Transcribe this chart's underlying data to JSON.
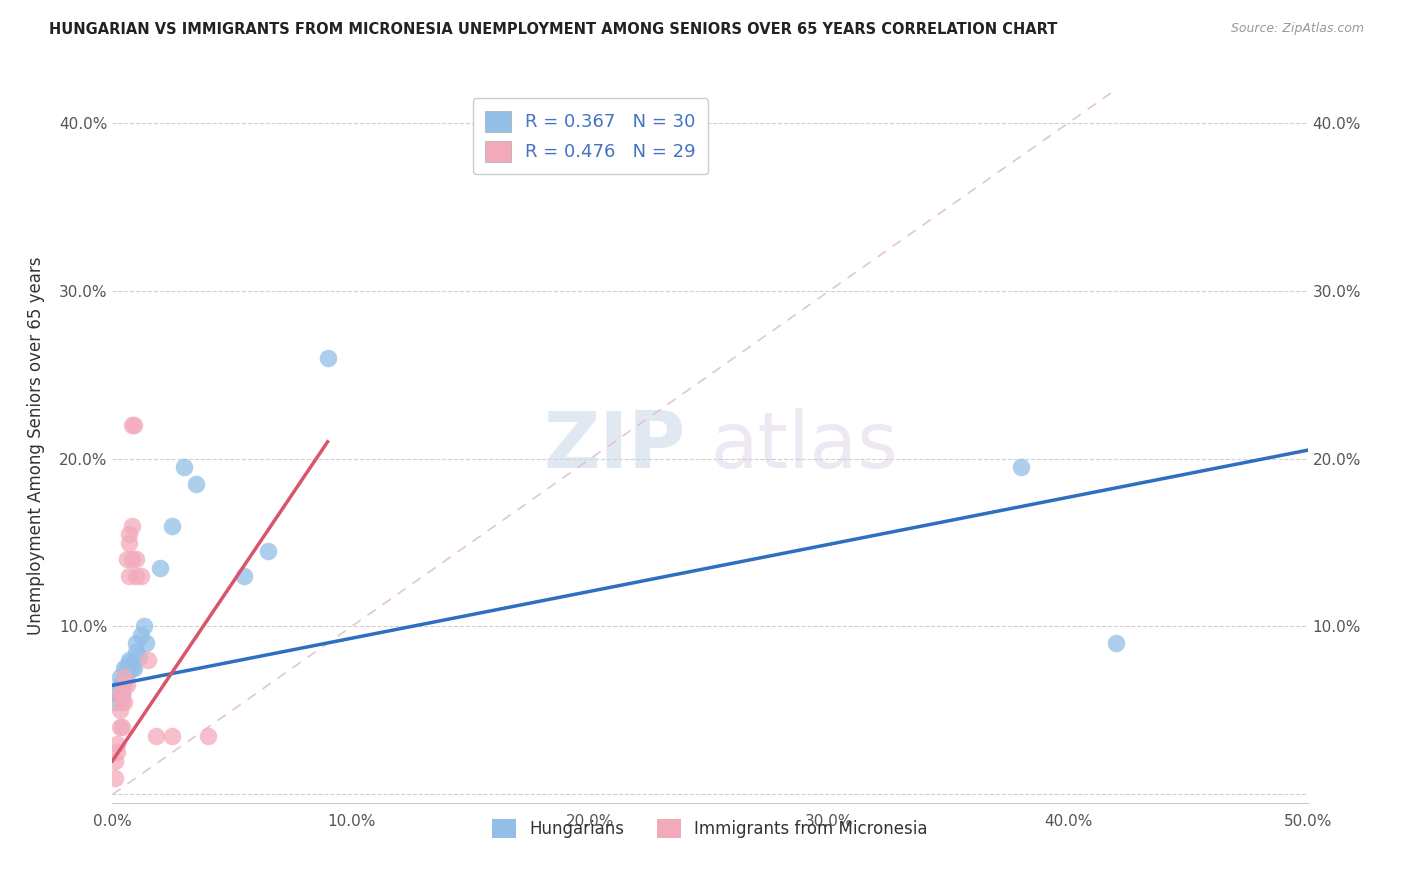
{
  "title": "HUNGARIAN VS IMMIGRANTS FROM MICRONESIA UNEMPLOYMENT AMONG SENIORS OVER 65 YEARS CORRELATION CHART",
  "source": "Source: ZipAtlas.com",
  "ylabel": "Unemployment Among Seniors over 65 years",
  "xlim": [
    0.0,
    0.5
  ],
  "ylim": [
    -0.005,
    0.42
  ],
  "xticks": [
    0.0,
    0.1,
    0.2,
    0.3,
    0.4,
    0.5
  ],
  "yticks": [
    0.0,
    0.1,
    0.2,
    0.3,
    0.4
  ],
  "ytick_labels": [
    "",
    "10.0%",
    "20.0%",
    "30.0%",
    "40.0%"
  ],
  "xtick_labels": [
    "0.0%",
    "10.0%",
    "20.0%",
    "30.0%",
    "40.0%",
    "50.0%"
  ],
  "right_ytick_labels": [
    "",
    "10.0%",
    "20.0%",
    "30.0%",
    "40.0%"
  ],
  "legend_R1": "R = 0.367",
  "legend_N1": "N = 30",
  "legend_R2": "R = 0.476",
  "legend_N2": "N = 29",
  "color_blue": "#92BEE8",
  "color_pink": "#F2AABB",
  "color_blue_line": "#2E6FBF",
  "color_pink_line": "#D9556A",
  "color_diag": "#E0C0C8",
  "watermark_zip": "ZIP",
  "watermark_atlas": "atlas",
  "hungarian_x": [
    0.001,
    0.002,
    0.003,
    0.003,
    0.004,
    0.004,
    0.005,
    0.005,
    0.005,
    0.006,
    0.006,
    0.007,
    0.007,
    0.008,
    0.009,
    0.01,
    0.01,
    0.011,
    0.012,
    0.013,
    0.014,
    0.02,
    0.025,
    0.03,
    0.035,
    0.055,
    0.065,
    0.09,
    0.38,
    0.42
  ],
  "hungarian_y": [
    0.055,
    0.06,
    0.065,
    0.07,
    0.06,
    0.065,
    0.07,
    0.075,
    0.068,
    0.075,
    0.072,
    0.08,
    0.078,
    0.075,
    0.075,
    0.09,
    0.085,
    0.082,
    0.095,
    0.1,
    0.09,
    0.135,
    0.16,
    0.195,
    0.185,
    0.13,
    0.145,
    0.26,
    0.195,
    0.09
  ],
  "micronesia_x": [
    0.001,
    0.001,
    0.002,
    0.002,
    0.003,
    0.003,
    0.003,
    0.004,
    0.004,
    0.004,
    0.005,
    0.005,
    0.005,
    0.006,
    0.006,
    0.007,
    0.007,
    0.007,
    0.008,
    0.008,
    0.008,
    0.009,
    0.01,
    0.01,
    0.012,
    0.015,
    0.018,
    0.025,
    0.04
  ],
  "micronesia_y": [
    0.01,
    0.02,
    0.025,
    0.03,
    0.04,
    0.05,
    0.06,
    0.04,
    0.055,
    0.06,
    0.055,
    0.065,
    0.07,
    0.065,
    0.14,
    0.13,
    0.15,
    0.155,
    0.14,
    0.16,
    0.22,
    0.22,
    0.13,
    0.14,
    0.13,
    0.08,
    0.035,
    0.035,
    0.035
  ],
  "blue_line_x": [
    0.0,
    0.5
  ],
  "blue_line_y": [
    0.065,
    0.205
  ],
  "pink_line_x": [
    0.0,
    0.09
  ],
  "pink_line_y": [
    0.02,
    0.21
  ]
}
